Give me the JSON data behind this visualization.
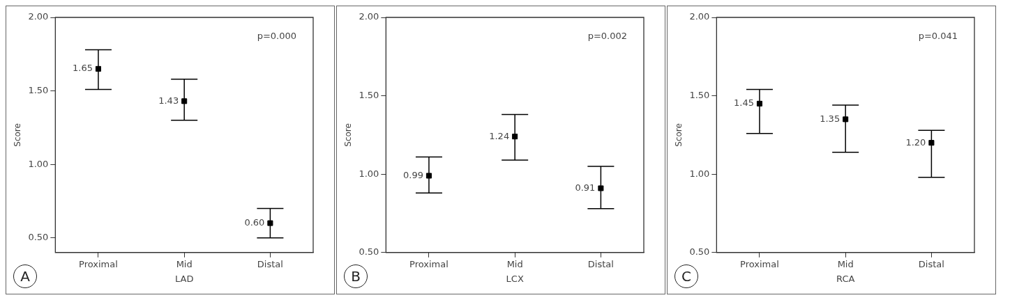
{
  "chart_data": [
    {
      "type": "scatter",
      "categories": [
        "Proximal",
        "Mid",
        "Distal"
      ],
      "values": [
        1.65,
        1.43,
        0.6
      ],
      "value_labels": [
        "1.65",
        "1.43",
        "0.60"
      ],
      "color": "#000000",
      "errors": [
        [
          1.51,
          1.78
        ],
        [
          1.3,
          1.58
        ],
        [
          0.5,
          0.7
        ]
      ],
      "marker": "square",
      "xlabel": "LAD",
      "ylabel": "Score",
      "ylim": [
        0.4,
        2.0
      ],
      "yticks": [
        {
          "value": 0.5,
          "label": "0.50"
        },
        {
          "value": 1,
          "label": "1.00"
        },
        {
          "value": 1.5,
          "label": "1.50"
        },
        {
          "value": 2,
          "label": "2.00"
        }
      ],
      "annotations": [
        "p=0.000",
        "A"
      ]
    },
    {
      "type": "scatter",
      "categories": [
        "Proximal",
        "Mid",
        "Distal"
      ],
      "values": [
        0.99,
        1.24,
        0.91
      ],
      "value_labels": [
        "0.99",
        "1.24",
        "0.91"
      ],
      "color": "#000000",
      "errors": [
        [
          0.88,
          1.11
        ],
        [
          1.09,
          1.38
        ],
        [
          0.78,
          1.05
        ]
      ],
      "marker": "square",
      "xlabel": "LCX",
      "ylabel": "Score",
      "ylim": [
        0.5,
        2.0
      ],
      "yticks": [
        {
          "value": 0.5,
          "label": "0.50"
        },
        {
          "value": 1,
          "label": "1.00"
        },
        {
          "value": 1.5,
          "label": "1.50"
        },
        {
          "value": 2,
          "label": "2.00"
        }
      ],
      "annotations": [
        "p=0.002",
        "B"
      ]
    },
    {
      "type": "scatter",
      "categories": [
        "Proximal",
        "Mid",
        "Distal"
      ],
      "values": [
        1.45,
        1.35,
        1.2
      ],
      "value_labels": [
        "1.45",
        "1.35",
        "1.20"
      ],
      "color": "#000000",
      "errors": [
        [
          1.26,
          1.54
        ],
        [
          1.14,
          1.44
        ],
        [
          0.98,
          1.28
        ]
      ],
      "marker": "square",
      "xlabel": "RCA",
      "ylabel": "Score",
      "ylim": [
        0.5,
        2.0
      ],
      "yticks": [
        {
          "value": 0.5,
          "label": "0.50"
        },
        {
          "value": 1,
          "label": "1.00"
        },
        {
          "value": 1.5,
          "label": "1.50"
        },
        {
          "value": 2,
          "label": "2.00"
        }
      ],
      "annotations": [
        "p=0.041",
        "C"
      ]
    }
  ]
}
